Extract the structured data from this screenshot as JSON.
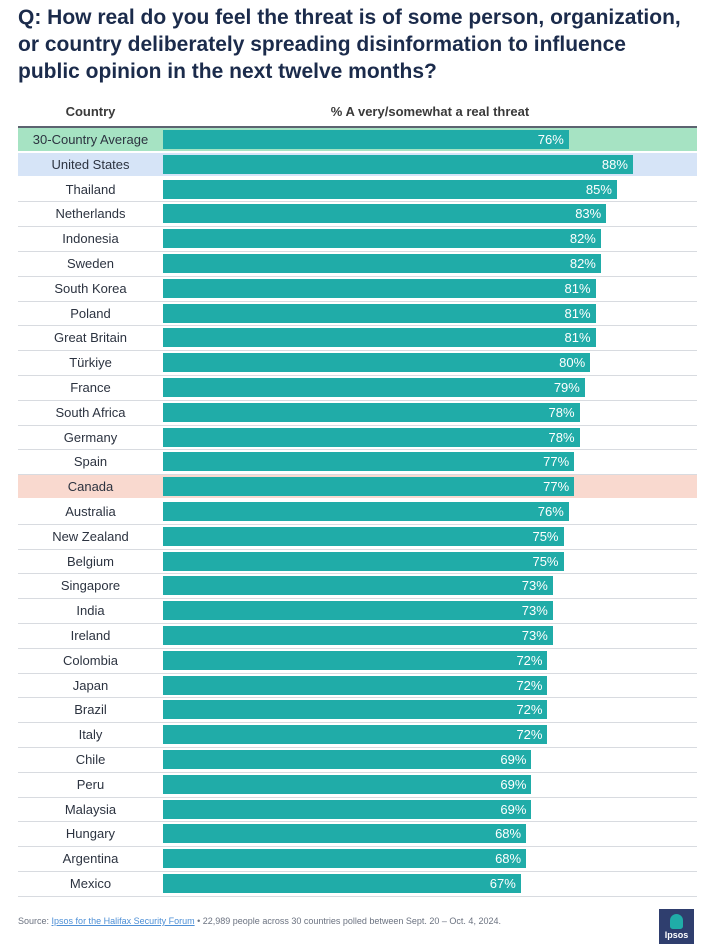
{
  "title": "Q: How real do you feel the threat is of some person, organization, or country deliberately spreading disinformation to influence public opinion in the next twelve months?",
  "header": {
    "country": "Country",
    "value": "% A very/somewhat a real threat"
  },
  "colors": {
    "bar": "#20aca8",
    "average_bg": "#a6e3c3",
    "us_bg": "#d6e4f7",
    "canada_bg": "#f9d9cf",
    "title": "#1b2b4b"
  },
  "chart_data": {
    "type": "bar",
    "orientation": "horizontal",
    "title": "Q: How real do you feel the threat is of some person, organization, or country deliberately spreading disinformation to influence public opinion in the next twelve months?",
    "xlabel": "% A very/somewhat a real threat",
    "ylabel": "Country",
    "xlim": [
      0,
      100
    ],
    "categories": [
      "30-Country Average",
      "United States",
      "Thailand",
      "Netherlands",
      "Indonesia",
      "Sweden",
      "South Korea",
      "Poland",
      "Great Britain",
      "Türkiye",
      "France",
      "South Africa",
      "Germany",
      "Spain",
      "Canada",
      "Australia",
      "New Zealand",
      "Belgium",
      "Singapore",
      "India",
      "Ireland",
      "Colombia",
      "Japan",
      "Brazil",
      "Italy",
      "Chile",
      "Peru",
      "Malaysia",
      "Hungary",
      "Argentina",
      "Mexico"
    ],
    "values": [
      76,
      88,
      85,
      83,
      82,
      82,
      81,
      81,
      81,
      80,
      79,
      78,
      78,
      77,
      77,
      76,
      75,
      75,
      73,
      73,
      73,
      72,
      72,
      72,
      72,
      69,
      69,
      69,
      68,
      68,
      67
    ],
    "labels": [
      "76%",
      "88%",
      "85%",
      "83%",
      "82%",
      "82%",
      "81%",
      "81%",
      "81%",
      "80%",
      "79%",
      "78%",
      "78%",
      "77%",
      "77%",
      "76%",
      "75%",
      "75%",
      "73%",
      "73%",
      "73%",
      "72%",
      "72%",
      "72%",
      "72%",
      "69%",
      "69%",
      "69%",
      "68%",
      "68%",
      "67%"
    ],
    "highlights": {
      "30-Country Average": "average",
      "United States": "us",
      "Canada": "canada"
    }
  },
  "footer": {
    "source_label": "Source:",
    "source_link": "Ipsos for the Halifax Security Forum",
    "source_text": " • 22,989 people across 30 countries polled between Sept. 20 – Oct. 4, 2024."
  },
  "logo": {
    "text": "Ipsos"
  }
}
